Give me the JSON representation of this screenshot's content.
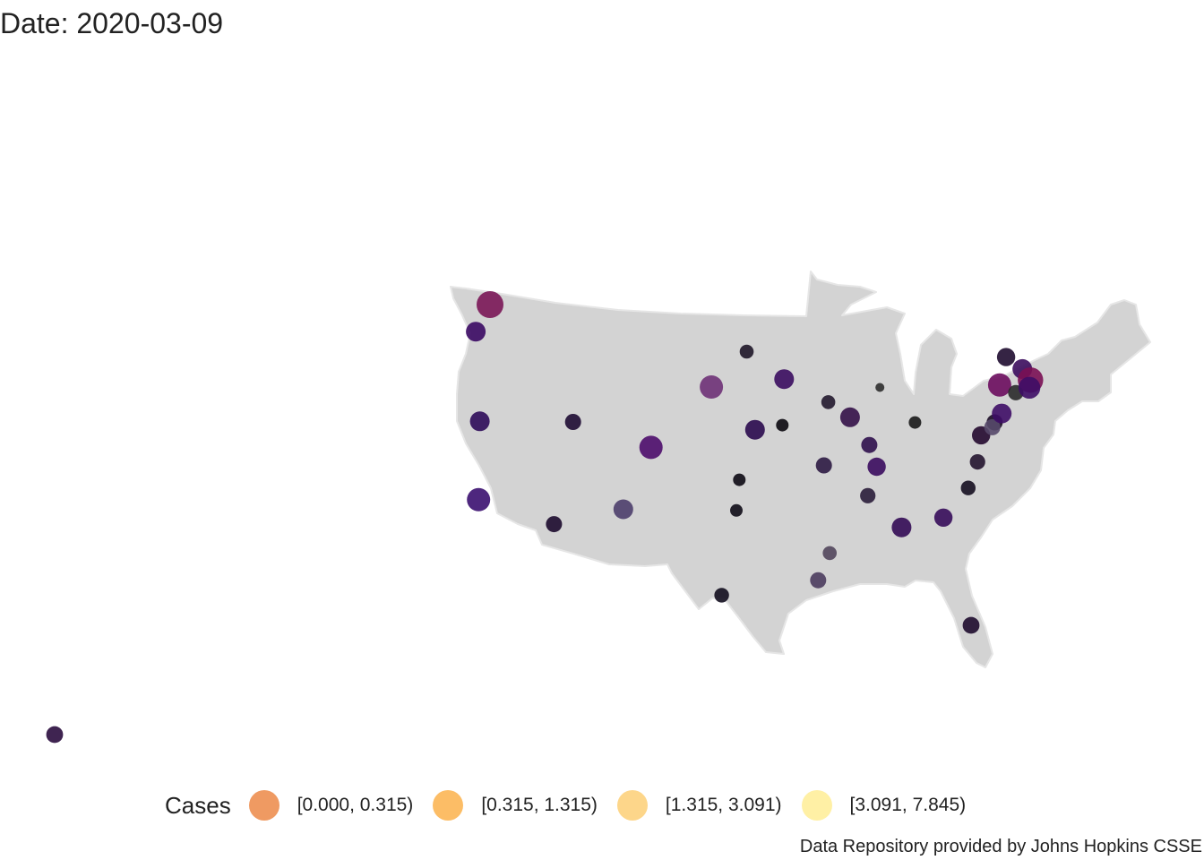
{
  "title": "Date: 2020-03-09",
  "caption": "Data Repository provided by Johns Hopkins CSSE",
  "colors": {
    "land": "#d3d3d3",
    "land_stroke": "#e6e6e6",
    "background": "#ffffff"
  },
  "legend": {
    "title": "Cases",
    "items": [
      {
        "label": "[0.000, 0.315)",
        "color": "#ef9a62"
      },
      {
        "label": "[0.315, 1.315)",
        "color": "#fcbd66"
      },
      {
        "label": "[1.315, 3.091)",
        "color": "#fdd68a"
      },
      {
        "label": "[3.091, 7.845)",
        "color": "#fff0a5"
      }
    ]
  },
  "map": {
    "region": "United States (contiguous + Hawaii)",
    "points": [
      {
        "place": "Washington",
        "lon": -122.3,
        "lat": 47.6,
        "size": 3,
        "color": "#7a1656"
      },
      {
        "place": "Oregon",
        "lon": -122.7,
        "lat": 45.5,
        "size": 2,
        "color": "#3a0963"
      },
      {
        "place": "Northern California",
        "lon": -119.8,
        "lat": 39.5,
        "size": 2,
        "color": "#2d0b59"
      },
      {
        "place": "Southern California",
        "lon": -118.2,
        "lat": 34.1,
        "size": 2.5,
        "color": "#3b0f70"
      },
      {
        "place": "Utah",
        "lon": -111.9,
        "lat": 40.8,
        "size": 1.5,
        "color": "#1e0b33"
      },
      {
        "place": "Arizona",
        "lon": -111.9,
        "lat": 33.4,
        "size": 1.5,
        "color": "#1c0a2e"
      },
      {
        "place": "Colorado",
        "lon": -104.9,
        "lat": 39.7,
        "size": 2.5,
        "color": "#4c0c6b"
      },
      {
        "place": "New Mexico",
        "lon": -106.6,
        "lat": 35.1,
        "size": 2,
        "color": "#4d3e6c"
      },
      {
        "place": "South Dakota",
        "lon": -100.0,
        "lat": 44.3,
        "size": 2.5,
        "color": "#6e3177"
      },
      {
        "place": "Nebraska",
        "lon": -96.0,
        "lat": 41.3,
        "size": 2,
        "color": "#2a0a4e"
      },
      {
        "place": "Kansas",
        "lon": -97.3,
        "lat": 37.7,
        "size": 1,
        "color": "#0d0a14"
      },
      {
        "place": "Oklahoma",
        "lon": -97.5,
        "lat": 35.5,
        "size": 1,
        "color": "#100c17"
      },
      {
        "place": "Texas",
        "lon": -98.5,
        "lat": 29.4,
        "size": 1.3,
        "color": "#120d1e"
      },
      {
        "place": "Minnesota",
        "lon": -93.3,
        "lat": 44.9,
        "size": 2,
        "color": "#3a0c5f"
      },
      {
        "place": "Iowa",
        "lon": -93.6,
        "lat": 41.6,
        "size": 1,
        "color": "#0b0910"
      },
      {
        "place": "Missouri",
        "lon": -90.2,
        "lat": 38.6,
        "size": 1.5,
        "color": "#2c1942"
      },
      {
        "place": "Louisiana",
        "lon": -91.2,
        "lat": 30.4,
        "size": 1.5,
        "color": "#4b3c5e"
      },
      {
        "place": "North Dakota",
        "lon": -96.8,
        "lat": 46.9,
        "size": 1.2,
        "color": "#1e1628"
      },
      {
        "place": "Wisconsin",
        "lon": -89.4,
        "lat": 43.1,
        "size": 1.2,
        "color": "#22182e"
      },
      {
        "place": "Illinois",
        "lon": -87.6,
        "lat": 41.9,
        "size": 2,
        "color": "#341148"
      },
      {
        "place": "Michigan",
        "lon": -84.6,
        "lat": 43.8,
        "size": 0.5,
        "color": "#2e2e2e"
      },
      {
        "place": "Indiana",
        "lon": -86.2,
        "lat": 39.8,
        "size": 1.5,
        "color": "#2f0f4d"
      },
      {
        "place": "Kentucky",
        "lon": -85.8,
        "lat": 38.2,
        "size": 1.8,
        "color": "#3a0b5e"
      },
      {
        "place": "Tennessee",
        "lon": -86.8,
        "lat": 36.2,
        "size": 1.4,
        "color": "#2a1d3a"
      },
      {
        "place": "Mississippi",
        "lon": -90.2,
        "lat": 32.3,
        "size": 1.2,
        "color": "#52465c"
      },
      {
        "place": "Georgia",
        "lon": -84.4,
        "lat": 33.7,
        "size": 2,
        "color": "#330b55"
      },
      {
        "place": "Florida",
        "lon": -80.2,
        "lat": 26.1,
        "size": 1.6,
        "color": "#1e0b2e"
      },
      {
        "place": "South Carolina",
        "lon": -81.0,
        "lat": 34.0,
        "size": 1.8,
        "color": "#360c5a"
      },
      {
        "place": "North Carolina",
        "lon": -78.6,
        "lat": 35.8,
        "size": 1.3,
        "color": "#150e20"
      },
      {
        "place": "Ohio",
        "lon": -82.0,
        "lat": 41.0,
        "size": 1,
        "color": "#1a1a1a"
      },
      {
        "place": "Virginia",
        "lon": -77.4,
        "lat": 37.5,
        "size": 1.4,
        "color": "#24142f"
      },
      {
        "place": "Maryland",
        "lon": -76.6,
        "lat": 39.3,
        "size": 1.8,
        "color": "#24092f"
      },
      {
        "place": "Pennsylvania",
        "lon": -75.2,
        "lat": 40.0,
        "size": 1.5,
        "color": "#1b0c26"
      },
      {
        "place": "Delaware",
        "lon": -75.5,
        "lat": 39.7,
        "size": 1.5,
        "color": "#57496a"
      },
      {
        "place": "New Jersey",
        "lon": -74.4,
        "lat": 40.5,
        "size": 2,
        "color": "#3e0d66"
      },
      {
        "place": "New York",
        "lon": -73.9,
        "lat": 42.5,
        "size": 2.5,
        "color": "#6b0c5e"
      },
      {
        "place": "Connecticut",
        "lon": -72.7,
        "lat": 41.7,
        "size": 1.4,
        "color": "#2a2a2a"
      },
      {
        "place": "Vermont",
        "lon": -72.6,
        "lat": 44.3,
        "size": 1.8,
        "color": "#1f0c30"
      },
      {
        "place": "New Hampshire",
        "lon": -71.5,
        "lat": 43.2,
        "size": 2,
        "color": "#3b0c5d"
      },
      {
        "place": "Massachusetts",
        "lon": -71.1,
        "lat": 42.3,
        "size": 2.8,
        "color": "#7a0f54"
      },
      {
        "place": "Rhode Island",
        "lon": -71.4,
        "lat": 41.8,
        "size": 2.3,
        "color": "#3e0d66"
      },
      {
        "place": "Hawaii",
        "lon": -157.9,
        "lat": 21.3,
        "size": 1.6,
        "color": "#2a0c3e"
      }
    ]
  }
}
